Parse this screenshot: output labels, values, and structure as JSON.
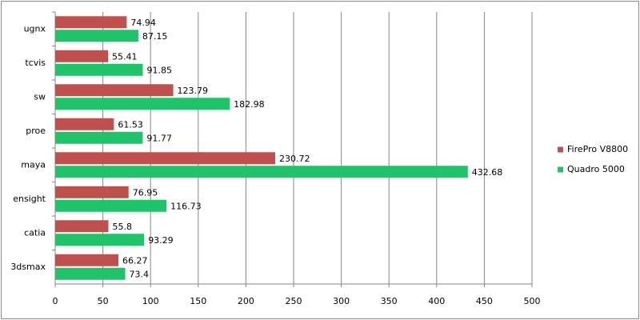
{
  "chart_data": {
    "type": "bar",
    "orientation": "horizontal",
    "categories": [
      "ugnx",
      "tcvis",
      "sw",
      "proe",
      "maya",
      "ensight",
      "catia",
      "3dsmax"
    ],
    "series": [
      {
        "name": "FirePro V8800",
        "color": "#c0504d",
        "values": [
          74.94,
          55.41,
          123.79,
          61.53,
          230.72,
          76.95,
          55.8,
          66.27
        ]
      },
      {
        "name": "Quadro 5000",
        "color": "#1fc46a",
        "values": [
          87.15,
          91.85,
          182.98,
          91.77,
          432.68,
          116.73,
          93.29,
          73.4
        ]
      }
    ],
    "xlim": [
      0,
      500
    ],
    "xticks": [
      0,
      50,
      100,
      150,
      200,
      250,
      300,
      350,
      400,
      450,
      500
    ],
    "grid": true,
    "legend": "right"
  }
}
